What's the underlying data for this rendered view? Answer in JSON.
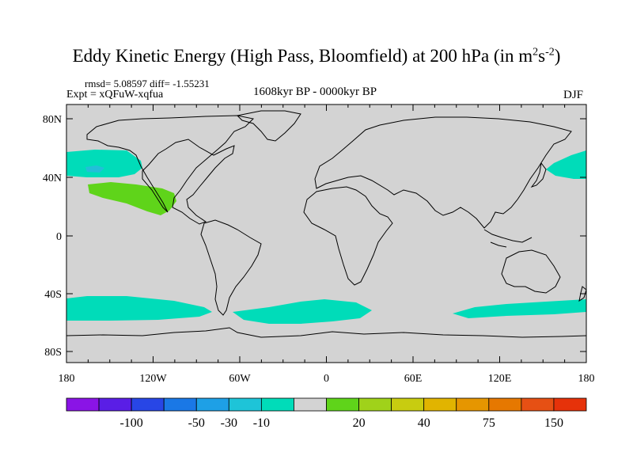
{
  "title": {
    "main": "Eddy Kinetic Energy (High Pass, Bloomfield) at 200 hPa (in m",
    "sup1": "2",
    "mid": "s",
    "sup2": "-2",
    "end": ")"
  },
  "stats": {
    "rmsd_line": "rmsd= 5.08597 diff= -1.55231"
  },
  "experiment": "Expt = xQFuW-xqfua",
  "period": "1608kyr BP - 0000kyr BP",
  "season": "DJF",
  "map": {
    "lon_ticks": [
      "180",
      "120W",
      "60W",
      "0",
      "60E",
      "120E",
      "180"
    ],
    "lat_ticks": [
      "80N",
      "40N",
      "0",
      "40S",
      "80S"
    ],
    "background_color": "#d3d3d3",
    "contour_regions": [
      {
        "name": "north-pacific-negative",
        "level": "-10 to -30",
        "color": "#00dcb9"
      },
      {
        "name": "north-pacific-core",
        "level": "-30 to -50",
        "color": "#22bfd8"
      },
      {
        "name": "east-pacific-positive",
        "level": "10 to 20",
        "color": "#5fd41a"
      },
      {
        "name": "west-pacific-negative",
        "level": "-10 to -30",
        "color": "#00dcb9"
      },
      {
        "name": "southern-ocean-negative",
        "level": "-10 to -30",
        "color": "#00dcb9"
      }
    ]
  },
  "colorbar": {
    "colors": [
      "#8a14e6",
      "#5a1ee6",
      "#2846e6",
      "#1a78e6",
      "#1ea0e6",
      "#1ec4d8",
      "#00dcb9",
      "#d3d3d3",
      "#5fd41a",
      "#a0d21a",
      "#c8cc10",
      "#e1b400",
      "#e69600",
      "#e67800",
      "#e65014",
      "#e6320a"
    ],
    "labels": [
      "-100",
      "-50",
      "-30",
      "-10",
      "20",
      "40",
      "75",
      "150"
    ]
  }
}
